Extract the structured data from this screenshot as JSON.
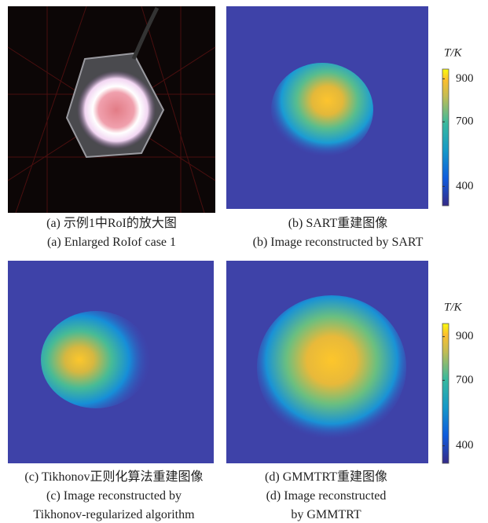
{
  "panels": [
    {
      "caption_zh": "(a) 示例1中RoI的放大图",
      "caption_en": [
        "(a) Enlarged RoIof case 1"
      ]
    },
    {
      "caption_zh": "(b) SART重建图像",
      "caption_en": [
        "(b) Image reconstructed by SART"
      ]
    },
    {
      "caption_zh": "(c) Tikhonov正则化算法重建图像",
      "caption_en": [
        "(c) Image reconstructed by",
        "Tikhonov-regularized algorithm"
      ]
    },
    {
      "caption_zh": "(d) GMMTRT重建图像",
      "caption_en": [
        "(d) Image reconstructed",
        "by GMMTRT"
      ]
    }
  ],
  "colorbars": [
    {
      "label": "T/K",
      "lim": [
        310,
        945
      ],
      "ticks": [
        400,
        700,
        900
      ]
    },
    {
      "label": "T/K",
      "lim": [
        320,
        960
      ],
      "ticks": [
        400,
        700,
        900
      ]
    }
  ]
}
